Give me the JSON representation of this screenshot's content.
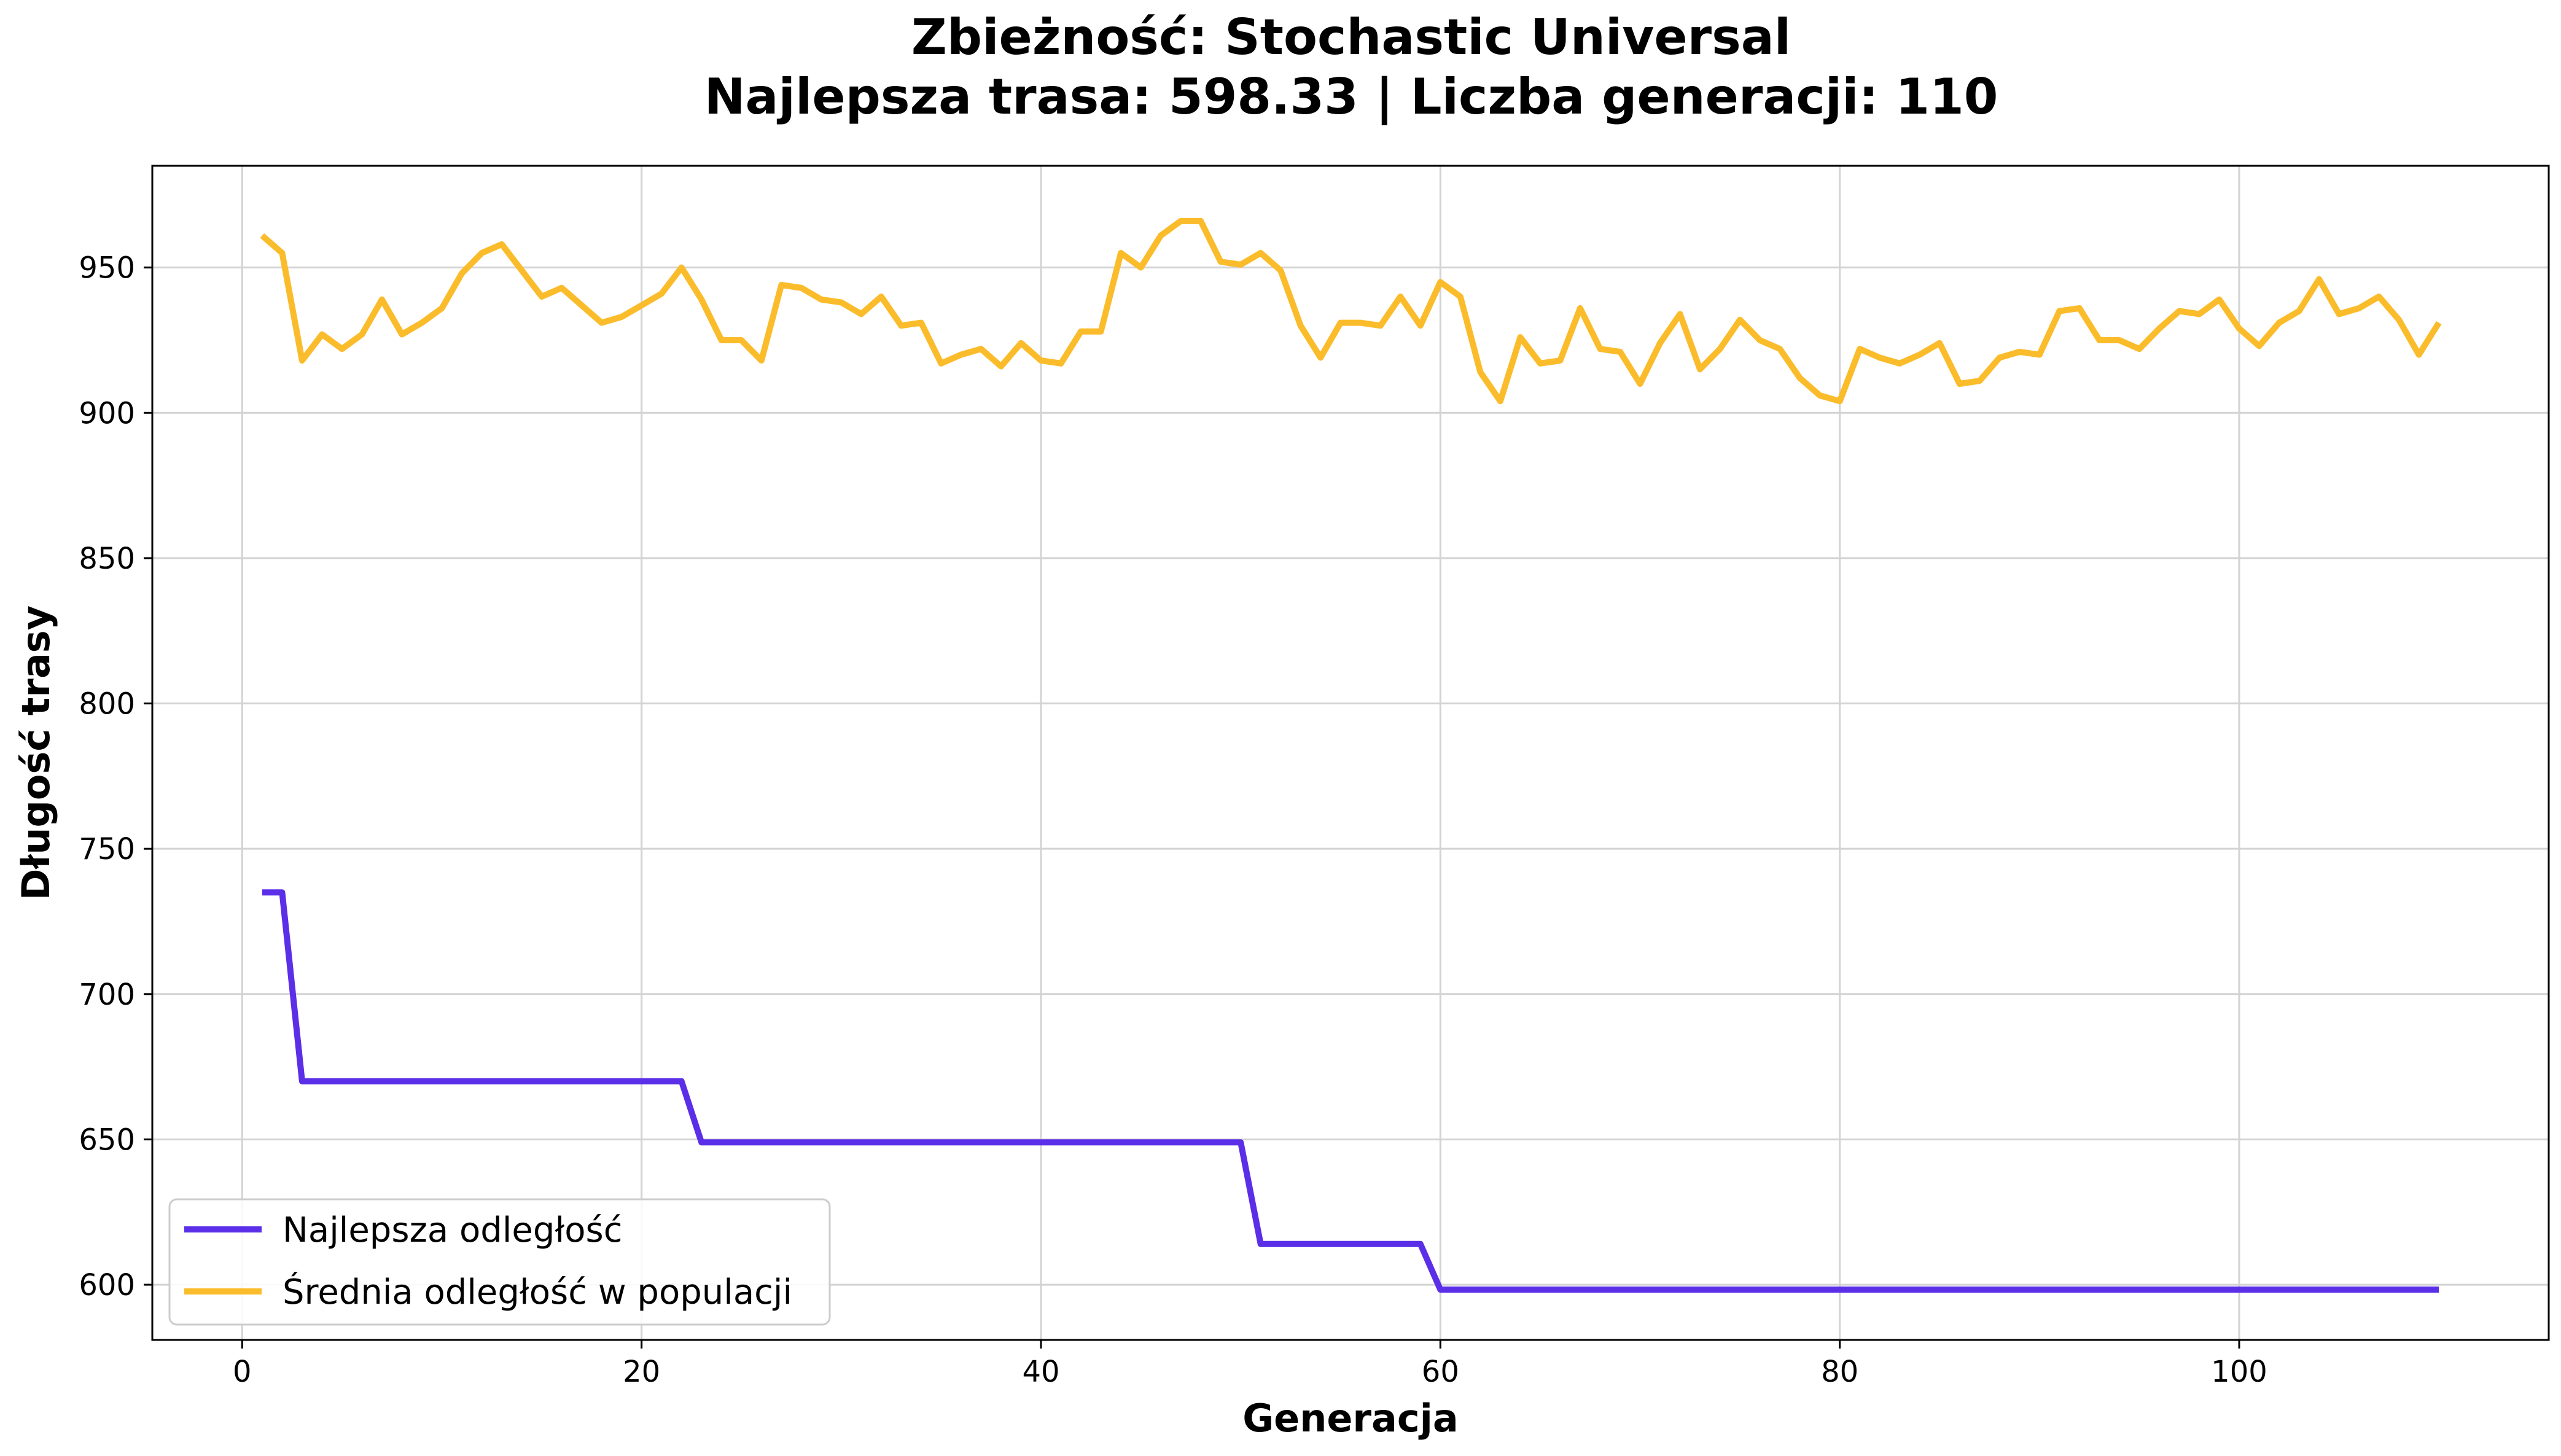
{
  "chart_data": {
    "type": "line",
    "title_line1": "Zbieżność: Stochastic Universal",
    "title_line2": "Najlepsza trasa: 598.33 | Liczba generacji: 110",
    "xlabel": "Generacja",
    "ylabel": "Długość trasy",
    "xlim": [
      -4.5,
      115.5
    ],
    "ylim": [
      581,
      985
    ],
    "xticks": [
      0,
      20,
      40,
      60,
      80,
      100
    ],
    "yticks": [
      600,
      650,
      700,
      750,
      800,
      850,
      900,
      950
    ],
    "grid": true,
    "legend_position": "lower-left",
    "series": [
      {
        "name": "Najlepsza odległość",
        "color": "#5b2ee8",
        "x": [
          1,
          2,
          3,
          4,
          5,
          6,
          7,
          8,
          9,
          10,
          11,
          12,
          13,
          14,
          15,
          16,
          17,
          18,
          19,
          20,
          21,
          22,
          23,
          24,
          25,
          26,
          27,
          28,
          29,
          30,
          31,
          32,
          33,
          34,
          35,
          36,
          37,
          38,
          39,
          40,
          41,
          42,
          43,
          44,
          45,
          46,
          47,
          48,
          49,
          50,
          51,
          52,
          53,
          54,
          55,
          56,
          57,
          58,
          59,
          60,
          61,
          62,
          63,
          64,
          65,
          66,
          67,
          68,
          69,
          70,
          71,
          72,
          73,
          74,
          75,
          76,
          77,
          78,
          79,
          80,
          81,
          82,
          83,
          84,
          85,
          86,
          87,
          88,
          89,
          90,
          91,
          92,
          93,
          94,
          95,
          96,
          97,
          98,
          99,
          100,
          101,
          102,
          103,
          104,
          105,
          106,
          107,
          108,
          109,
          110
        ],
        "values": [
          735,
          735,
          670,
          670,
          670,
          670,
          670,
          670,
          670,
          670,
          670,
          670,
          670,
          670,
          670,
          670,
          670,
          670,
          670,
          670,
          670,
          670,
          649,
          649,
          649,
          649,
          649,
          649,
          649,
          649,
          649,
          649,
          649,
          649,
          649,
          649,
          649,
          649,
          649,
          649,
          649,
          649,
          649,
          649,
          649,
          649,
          649,
          649,
          649,
          649,
          614,
          614,
          614,
          614,
          614,
          614,
          614,
          614,
          614,
          598.33,
          598.33,
          598.33,
          598.33,
          598.33,
          598.33,
          598.33,
          598.33,
          598.33,
          598.33,
          598.33,
          598.33,
          598.33,
          598.33,
          598.33,
          598.33,
          598.33,
          598.33,
          598.33,
          598.33,
          598.33,
          598.33,
          598.33,
          598.33,
          598.33,
          598.33,
          598.33,
          598.33,
          598.33,
          598.33,
          598.33,
          598.33,
          598.33,
          598.33,
          598.33,
          598.33,
          598.33,
          598.33,
          598.33,
          598.33,
          598.33,
          598.33,
          598.33,
          598.33,
          598.33,
          598.33,
          598.33,
          598.33,
          598.33,
          598.33,
          598.33
        ]
      },
      {
        "name": "Średnia odległość w populacji",
        "color": "#fbbc2b",
        "x": [
          1,
          2,
          3,
          4,
          5,
          6,
          7,
          8,
          9,
          10,
          11,
          12,
          13,
          14,
          15,
          16,
          17,
          18,
          19,
          20,
          21,
          22,
          23,
          24,
          25,
          26,
          27,
          28,
          29,
          30,
          31,
          32,
          33,
          34,
          35,
          36,
          37,
          38,
          39,
          40,
          41,
          42,
          43,
          44,
          45,
          46,
          47,
          48,
          49,
          50,
          51,
          52,
          53,
          54,
          55,
          56,
          57,
          58,
          59,
          60,
          61,
          62,
          63,
          64,
          65,
          66,
          67,
          68,
          69,
          70,
          71,
          72,
          73,
          74,
          75,
          76,
          77,
          78,
          79,
          80,
          81,
          82,
          83,
          84,
          85,
          86,
          87,
          88,
          89,
          90,
          91,
          92,
          93,
          94,
          95,
          96,
          97,
          98,
          99,
          100,
          101,
          102,
          103,
          104,
          105,
          106,
          107,
          108,
          109,
          110
        ],
        "values": [
          961,
          955,
          918,
          927,
          922,
          927,
          939,
          927,
          931,
          936,
          948,
          955,
          958,
          949,
          940,
          943,
          937,
          931,
          933,
          937,
          941,
          950,
          939,
          925,
          925,
          918,
          944,
          943,
          939,
          938,
          934,
          940,
          930,
          931,
          917,
          920,
          922,
          916,
          924,
          918,
          917,
          928,
          928,
          955,
          950,
          961,
          966,
          966,
          952,
          951,
          955,
          949,
          930,
          919,
          931,
          931,
          930,
          940,
          930,
          945,
          940,
          914,
          904,
          926,
          917,
          918,
          936,
          922,
          921,
          910,
          924,
          934,
          915,
          922,
          932,
          925,
          922,
          912,
          906,
          904,
          922,
          919,
          917,
          920,
          924,
          910,
          911,
          919,
          921,
          920,
          935,
          936,
          925,
          925,
          922,
          929,
          935,
          934,
          939,
          929,
          923,
          931,
          935,
          946,
          934,
          936,
          940,
          932,
          920,
          931
        ]
      }
    ]
  }
}
